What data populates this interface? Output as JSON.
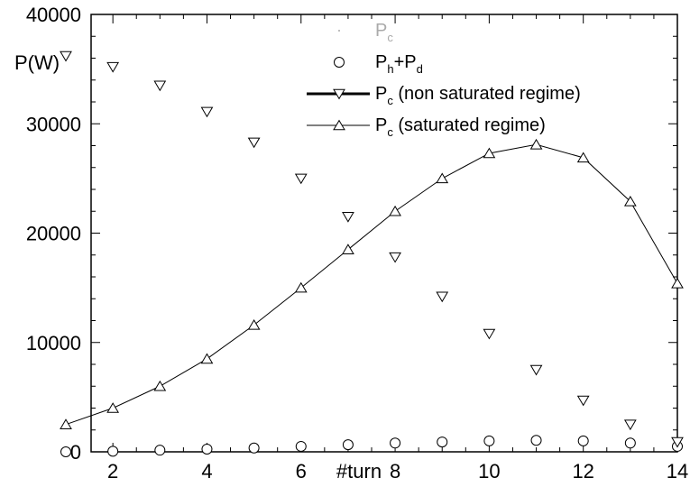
{
  "chart_data": {
    "type": "line",
    "xlabel": "#turn",
    "ylabel": "P(W)",
    "xlim": [
      1,
      14
    ],
    "ylim": [
      0,
      40000
    ],
    "x_ticks": [
      2,
      4,
      6,
      8,
      10,
      12,
      14
    ],
    "y_ticks": [
      0,
      10000,
      20000,
      30000,
      40000
    ],
    "grid": false,
    "legend_position": "top",
    "legend": [
      {
        "main": "P",
        "sub": "c",
        "suffix": "",
        "symbol": "none",
        "color": "#aaaaaa"
      },
      {
        "main": "P",
        "sub": "h",
        "suffix": "+P",
        "sub2": "d",
        "symbol": "circle"
      },
      {
        "main": "P",
        "sub": "c",
        "suffix": "(non saturated regime)",
        "symbol": "triangle-down-thickline"
      },
      {
        "main": "P",
        "sub": "c",
        "suffix": "(saturated regime)",
        "symbol": "triangle-up-line"
      }
    ],
    "series": [
      {
        "marker": "circle",
        "line": false,
        "x": [
          1,
          2,
          3,
          4,
          5,
          6,
          7,
          8,
          9,
          10,
          11,
          12,
          13,
          14
        ],
        "y": [
          0,
          50,
          150,
          250,
          350,
          500,
          650,
          800,
          900,
          1000,
          1050,
          1000,
          800,
          500
        ]
      },
      {
        "marker": "triangle-down",
        "line": false,
        "x": [
          1,
          2,
          3,
          4,
          5,
          6,
          7,
          8,
          9,
          10,
          11,
          12,
          13,
          14
        ],
        "y": [
          36200,
          35200,
          33500,
          31100,
          28300,
          25000,
          21500,
          17800,
          14200,
          10800,
          7500,
          4700,
          2500,
          900
        ]
      },
      {
        "marker": "triangle-up",
        "line": true,
        "x": [
          1,
          2,
          3,
          4,
          5,
          6,
          7,
          8,
          9,
          10,
          11,
          12,
          13,
          14
        ],
        "y": [
          2500,
          4000,
          6000,
          8500,
          11600,
          15000,
          18500,
          22000,
          25000,
          27300,
          28100,
          26900,
          22900,
          15400
        ]
      }
    ]
  }
}
